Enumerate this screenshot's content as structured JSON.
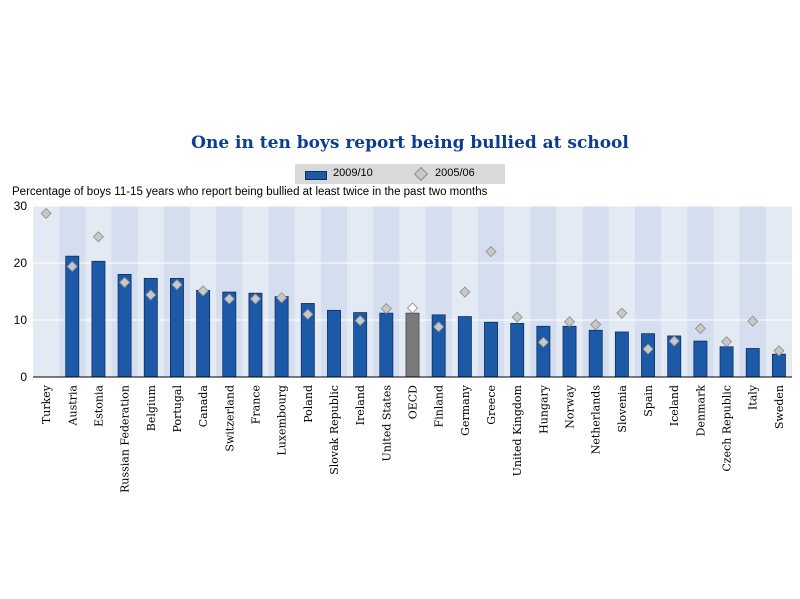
{
  "chart_data": {
    "type": "bar",
    "title": "One in ten boys report being bullied at school",
    "subtitle": "Percentage of boys 11-15 years who report being bullied at least twice in the past two months",
    "categories": [
      "Turkey",
      "Austria",
      "Estonia",
      "Russian Federation",
      "Belgium",
      "Portugal",
      "Canada",
      "Switzerland",
      "France",
      "Luxembourg",
      "Poland",
      "Slovak Republic",
      "Ireland",
      "United States",
      "OECD",
      "Finland",
      "Germany",
      "Greece",
      "United Kingdom",
      "Hungary",
      "Norway",
      "Netherlands",
      "Slovenia",
      "Spain",
      "Iceland",
      "Denmark",
      "Czech Republic",
      "Italy",
      "Sweden"
    ],
    "series": [
      {
        "name": "2009/10",
        "kind": "bar",
        "values": [
          null,
          21.2,
          20.3,
          18,
          17.3,
          17.3,
          15.2,
          14.9,
          14.7,
          14.1,
          12.9,
          11.7,
          11.3,
          11.2,
          11.2,
          10.9,
          10.6,
          9.6,
          9.4,
          8.9,
          8.9,
          8.2,
          7.9,
          7.6,
          7.2,
          6.3,
          5.3,
          5.0,
          4.0
        ],
        "color": "#1c5aa8",
        "highlight": {
          "category": "OECD",
          "color": "#7a7a7a"
        }
      },
      {
        "name": "2005/06",
        "kind": "marker",
        "values": [
          28.7,
          19.4,
          24.6,
          16.6,
          14.4,
          16.2,
          15.1,
          13.7,
          13.7,
          13.9,
          11.0,
          null,
          9.9,
          12.0,
          12.1,
          8.8,
          14.9,
          22.0,
          10.5,
          6.1,
          9.7,
          9.2,
          11.2,
          4.9,
          6.3,
          8.5,
          6.2,
          9.8,
          4.6
        ],
        "color": "#c8c8c8"
      }
    ],
    "ylim": [
      0,
      30
    ],
    "yticks": [
      0,
      10,
      20,
      30
    ],
    "legend_position": "top-center",
    "grid": "vertical-bands"
  }
}
